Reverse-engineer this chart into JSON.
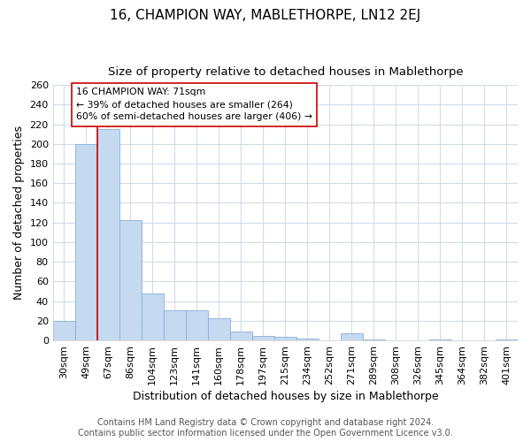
{
  "title": "16, CHAMPION WAY, MABLETHORPE, LN12 2EJ",
  "subtitle": "Size of property relative to detached houses in Mablethorpe",
  "xlabel": "Distribution of detached houses by size in Mablethorpe",
  "ylabel": "Number of detached properties",
  "footer_line1": "Contains HM Land Registry data © Crown copyright and database right 2024.",
  "footer_line2": "Contains public sector information licensed under the Open Government Licence v3.0.",
  "categories": [
    "30sqm",
    "49sqm",
    "67sqm",
    "86sqm",
    "104sqm",
    "123sqm",
    "141sqm",
    "160sqm",
    "178sqm",
    "197sqm",
    "215sqm",
    "234sqm",
    "252sqm",
    "271sqm",
    "289sqm",
    "308sqm",
    "326sqm",
    "345sqm",
    "364sqm",
    "382sqm",
    "401sqm"
  ],
  "values": [
    20,
    200,
    215,
    122,
    48,
    31,
    31,
    23,
    9,
    5,
    4,
    2,
    0,
    7,
    1,
    0,
    0,
    1,
    0,
    0,
    1
  ],
  "bar_color": "#c5d9f0",
  "bar_edge_color": "#8ab0d8",
  "red_line_x": 1.5,
  "red_line_color": "#cc0000",
  "annotation_line1": "16 CHAMPION WAY: 71sqm",
  "annotation_line2": "← 39% of detached houses are smaller (264)",
  "annotation_line3": "60% of semi-detached houses are larger (406) →",
  "annotation_box_color": "#ffffff",
  "annotation_box_edge": "#cc0000",
  "ylim": [
    0,
    260
  ],
  "yticks": [
    0,
    20,
    40,
    60,
    80,
    100,
    120,
    140,
    160,
    180,
    200,
    220,
    240,
    260
  ],
  "background_color": "#ffffff",
  "plot_bg_color": "#ffffff",
  "grid_color": "#d0dcea",
  "title_fontsize": 11,
  "subtitle_fontsize": 9.5,
  "axis_label_fontsize": 9,
  "tick_fontsize": 8,
  "footer_fontsize": 7
}
